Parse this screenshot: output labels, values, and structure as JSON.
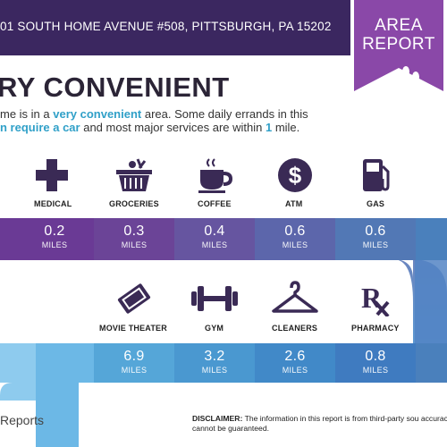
{
  "header": {
    "address": "01 SOUTH HOME AVENUE #508, PITTSBURGH, PA 15202",
    "badge_line1": "AREA",
    "badge_line2": "REPORT",
    "badge_icon": "footprints-icon"
  },
  "headline": "RY CONVENIENT",
  "summary": {
    "line1_pre": "me is in a ",
    "line1_hl": "very convenient",
    "line1_post": " area. Some daily errands in this",
    "line2_hl": "n require a car",
    "line2_mid": " and most major services are within ",
    "line2_hl2": "1",
    "line2_post": " mile."
  },
  "row1": [
    {
      "label": "MEDICAL",
      "icon": "medical-cross-icon",
      "value": "0.2",
      "unit": "MILES",
      "color": "#6a3a95"
    },
    {
      "label": "GROCERIES",
      "icon": "grocery-basket-icon",
      "value": "0.3",
      "unit": "MILES",
      "color": "#6b4497"
    },
    {
      "label": "COFFEE",
      "icon": "coffee-cup-icon",
      "value": "0.4",
      "unit": "MILES",
      "color": "#6655a0"
    },
    {
      "label": "ATM",
      "icon": "dollar-icon",
      "value": "0.6",
      "unit": "MILES",
      "color": "#5c66ab"
    },
    {
      "label": "GAS",
      "icon": "gas-pump-icon",
      "value": "0.6",
      "unit": "MILES",
      "color": "#5278b5"
    }
  ],
  "row2": [
    {
      "label": "MOVIE THEATER",
      "icon": "ticket-icon",
      "value": "6.9",
      "unit": "MILES",
      "color": "#55a6d8"
    },
    {
      "label": "GYM",
      "icon": "dumbbell-icon",
      "value": "3.2",
      "unit": "MILES",
      "color": "#4a98d0"
    },
    {
      "label": "CLEANERS",
      "icon": "hanger-icon",
      "value": "2.6",
      "unit": "MILES",
      "color": "#4189c8"
    },
    {
      "label": "PHARMACY",
      "icon": "rx-icon",
      "value": "0.8",
      "unit": "MILES",
      "color": "#3f7bc0"
    }
  ],
  "footer": {
    "logo_text": "Reports",
    "disclaimer_label": "DISCLAIMER:",
    "disclaimer_text": " The information in this report is from third-party sou accuracy cannot be guaranteed."
  },
  "colors": {
    "header_bg": "#3b2760",
    "badge_bg": "#8a48a8",
    "accent": "#30a0c8",
    "icon_dark": "#3a2a55"
  }
}
